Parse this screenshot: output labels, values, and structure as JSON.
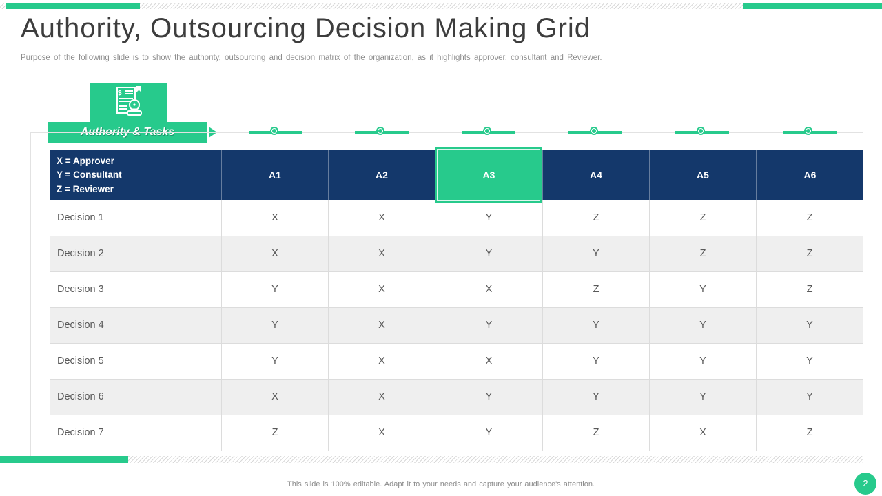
{
  "slide": {
    "title": "Authority, Outsourcing Decision Making Grid",
    "subtitle": "Purpose of the following slide is to show the authority, outsourcing and decision matrix of the organization, as it highlights approver, consultant and Reviewer.",
    "footer": "This slide is 100% editable. Adapt it to your needs and capture your audience's attention.",
    "page_number": "2"
  },
  "section": {
    "label": "Authority & Tasks",
    "icon": "document-stamp-icon"
  },
  "timeline": {
    "markers": 6
  },
  "table": {
    "legend": [
      "X = Approver",
      "Y = Consultant",
      "Z = Reviewer"
    ],
    "columns": [
      "A1",
      "A2",
      "A3",
      "A4",
      "A5",
      "A6"
    ],
    "highlighted_column": "A3",
    "rows": [
      {
        "label": "Decision 1",
        "values": [
          "X",
          "X",
          "Y",
          "Z",
          "Z",
          "Z"
        ]
      },
      {
        "label": "Decision 2",
        "values": [
          "X",
          "X",
          "Y",
          "Y",
          "Z",
          "Z"
        ]
      },
      {
        "label": "Decision 3",
        "values": [
          "Y",
          "X",
          "X",
          "Z",
          "Y",
          "Z"
        ]
      },
      {
        "label": "Decision 4",
        "values": [
          "Y",
          "X",
          "Y",
          "Y",
          "Y",
          "Y"
        ]
      },
      {
        "label": "Decision 5",
        "values": [
          "Y",
          "X",
          "X",
          "Y",
          "Y",
          "Y"
        ]
      },
      {
        "label": "Decision 6",
        "values": [
          "X",
          "X",
          "Y",
          "Y",
          "Y",
          "Y"
        ]
      },
      {
        "label": "Decision 7",
        "values": [
          "Z",
          "X",
          "Y",
          "Z",
          "X",
          "Z"
        ]
      }
    ]
  },
  "colors": {
    "accent_green": "#27CA8C",
    "header_navy": "#14386B",
    "row_alt": "#EFEFEF",
    "grid_border": "#DCDCDC",
    "body_text": "#595959"
  }
}
